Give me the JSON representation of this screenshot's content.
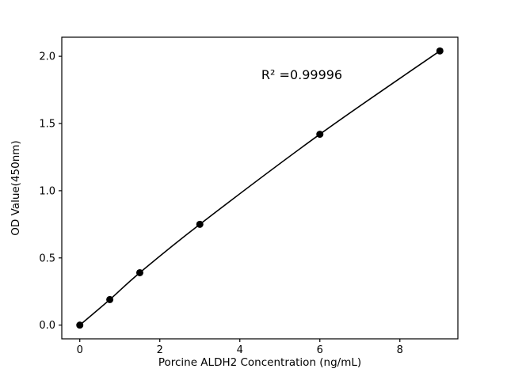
{
  "chart_data": {
    "type": "scatter",
    "title": "",
    "xlabel": "Porcine ALDH2 Concentration (ng/mL)",
    "ylabel": "OD Value(450nm)",
    "annotation": "R² =0.99996",
    "x": [
      0,
      0.75,
      1.5,
      3,
      6,
      9
    ],
    "y": [
      0.0,
      0.19,
      0.39,
      0.75,
      1.42,
      2.04
    ],
    "xlim": [
      -0.45,
      9.45
    ],
    "ylim": [
      -0.102,
      2.142
    ],
    "xticks": [
      {
        "v": 0,
        "label": "0"
      },
      {
        "v": 2,
        "label": "2"
      },
      {
        "v": 4,
        "label": "4"
      },
      {
        "v": 6,
        "label": "6"
      },
      {
        "v": 8,
        "label": "8"
      }
    ],
    "yticks": [
      {
        "v": 0.0,
        "label": "0.0"
      },
      {
        "v": 0.5,
        "label": "0.5"
      },
      {
        "v": 1.0,
        "label": "1.0"
      },
      {
        "v": 1.5,
        "label": "1.5"
      },
      {
        "v": 2.0,
        "label": "2.0"
      }
    ],
    "annotation_pos": {
      "x": 5.55,
      "y": 1.83
    },
    "line_color": "#000000",
    "marker_color": "#000000",
    "frame_color": "#000000",
    "grid": "off",
    "legend": "none"
  }
}
